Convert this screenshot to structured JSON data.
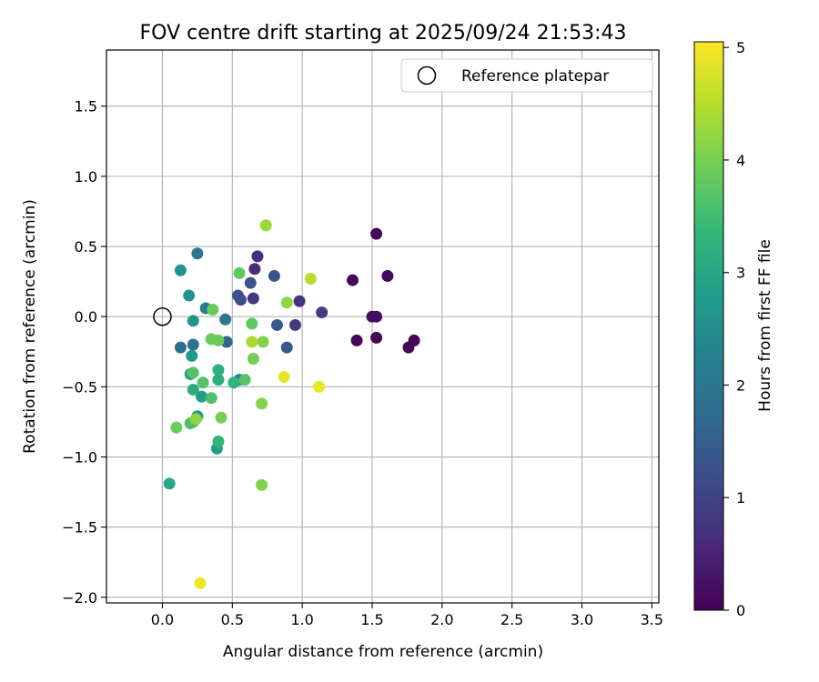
{
  "chart_data": {
    "type": "scatter",
    "title": "FOV centre drift starting at 2025/09/24 21:53:43",
    "xlabel": "Angular distance from reference (arcmin)",
    "ylabel": "Rotation from reference (arcmin)",
    "xlim": [
      -0.4,
      3.55
    ],
    "ylim": [
      -2.04,
      1.9
    ],
    "xticks": [
      0.0,
      0.5,
      1.0,
      1.5,
      2.0,
      2.5,
      3.0,
      3.5
    ],
    "xtick_labels": [
      "0.0",
      "0.5",
      "1.0",
      "1.5",
      "2.0",
      "2.5",
      "3.0",
      "3.5"
    ],
    "yticks": [
      -2.0,
      -1.5,
      -1.0,
      -0.5,
      0.0,
      0.5,
      1.0,
      1.5
    ],
    "ytick_labels": [
      "−2.0",
      "−1.5",
      "−1.0",
      "−0.5",
      "0.0",
      "0.5",
      "1.0",
      "1.5"
    ],
    "grid": true,
    "legend": {
      "position": "top-right",
      "entries": [
        {
          "label": "Reference platepar",
          "marker": "open-circle"
        }
      ]
    },
    "reference_point": {
      "x": 0.0,
      "y": 0.0
    },
    "colorbar": {
      "label": "Hours from first FF file",
      "range": [
        0,
        5.05
      ],
      "ticks": [
        0,
        1,
        2,
        3,
        4,
        5
      ],
      "tick_labels": [
        "0",
        "1",
        "2",
        "3",
        "4",
        "5"
      ],
      "colormap": "viridis"
    },
    "points": [
      {
        "x": 1.36,
        "y": 0.26,
        "h": 0.1
      },
      {
        "x": 1.53,
        "y": 0.59,
        "h": 0.1
      },
      {
        "x": 1.61,
        "y": 0.29,
        "h": 0.1
      },
      {
        "x": 1.39,
        "y": -0.17,
        "h": 0.1
      },
      {
        "x": 1.5,
        "y": 0.0,
        "h": 0.2
      },
      {
        "x": 1.53,
        "y": 0.0,
        "h": 0.2
      },
      {
        "x": 1.53,
        "y": -0.15,
        "h": 0.1
      },
      {
        "x": 1.8,
        "y": -0.17,
        "h": 0.05
      },
      {
        "x": 1.76,
        "y": -0.22,
        "h": 0.05
      },
      {
        "x": 0.68,
        "y": 0.43,
        "h": 0.7
      },
      {
        "x": 0.66,
        "y": 0.34,
        "h": 0.7
      },
      {
        "x": 0.65,
        "y": 0.13,
        "h": 0.8
      },
      {
        "x": 0.98,
        "y": 0.11,
        "h": 0.8
      },
      {
        "x": 1.14,
        "y": 0.03,
        "h": 0.9
      },
      {
        "x": 0.95,
        "y": -0.06,
        "h": 0.9
      },
      {
        "x": 0.8,
        "y": 0.29,
        "h": 1.3
      },
      {
        "x": 0.63,
        "y": 0.24,
        "h": 1.3
      },
      {
        "x": 0.54,
        "y": 0.15,
        "h": 1.3
      },
      {
        "x": 0.56,
        "y": 0.12,
        "h": 1.2
      },
      {
        "x": 0.89,
        "y": -0.22,
        "h": 1.4
      },
      {
        "x": 0.82,
        "y": -0.06,
        "h": 1.4
      },
      {
        "x": 0.46,
        "y": -0.18,
        "h": 1.6
      },
      {
        "x": 0.13,
        "y": -0.22,
        "h": 1.8
      },
      {
        "x": 0.22,
        "y": -0.2,
        "h": 1.9
      },
      {
        "x": 0.25,
        "y": 0.45,
        "h": 2.0
      },
      {
        "x": 0.45,
        "y": -0.02,
        "h": 2.0
      },
      {
        "x": 0.31,
        "y": 0.06,
        "h": 2.1
      },
      {
        "x": 0.55,
        "y": -0.45,
        "h": 2.2
      },
      {
        "x": 0.13,
        "y": 0.33,
        "h": 2.6
      },
      {
        "x": 0.19,
        "y": 0.15,
        "h": 2.6
      },
      {
        "x": 0.22,
        "y": -0.03,
        "h": 2.6
      },
      {
        "x": 0.21,
        "y": -0.28,
        "h": 2.7
      },
      {
        "x": 0.25,
        "y": -0.71,
        "h": 2.7
      },
      {
        "x": 0.28,
        "y": -0.57,
        "h": 2.8
      },
      {
        "x": 0.39,
        "y": -0.94,
        "h": 2.8
      },
      {
        "x": 0.05,
        "y": -1.19,
        "h": 3.0
      },
      {
        "x": 0.2,
        "y": -0.41,
        "h": 3.0
      },
      {
        "x": 0.22,
        "y": -0.52,
        "h": 3.1
      },
      {
        "x": 0.4,
        "y": -0.45,
        "h": 3.2
      },
      {
        "x": 0.4,
        "y": -0.38,
        "h": 3.2
      },
      {
        "x": 0.4,
        "y": -0.89,
        "h": 3.3
      },
      {
        "x": 0.51,
        "y": -0.47,
        "h": 3.3
      },
      {
        "x": 0.22,
        "y": -0.75,
        "h": 3.5
      },
      {
        "x": 0.2,
        "y": -0.76,
        "h": 3.6
      },
      {
        "x": 0.35,
        "y": -0.58,
        "h": 3.6
      },
      {
        "x": 0.29,
        "y": -0.47,
        "h": 3.7
      },
      {
        "x": 0.22,
        "y": -0.4,
        "h": 3.7
      },
      {
        "x": 0.59,
        "y": -0.45,
        "h": 3.7
      },
      {
        "x": 0.55,
        "y": 0.31,
        "h": 3.8
      },
      {
        "x": 0.64,
        "y": -0.05,
        "h": 3.8
      },
      {
        "x": 0.36,
        "y": 0.05,
        "h": 3.9
      },
      {
        "x": 0.35,
        "y": -0.16,
        "h": 3.9
      },
      {
        "x": 0.4,
        "y": -0.17,
        "h": 3.9
      },
      {
        "x": 0.1,
        "y": -0.79,
        "h": 3.9
      },
      {
        "x": 0.42,
        "y": -0.72,
        "h": 4.0
      },
      {
        "x": 0.65,
        "y": -0.3,
        "h": 4.0
      },
      {
        "x": 0.72,
        "y": -0.18,
        "h": 4.1
      },
      {
        "x": 0.71,
        "y": -0.62,
        "h": 4.1
      },
      {
        "x": 0.71,
        "y": -1.2,
        "h": 4.1
      },
      {
        "x": 0.24,
        "y": -0.73,
        "h": 4.2
      },
      {
        "x": 0.89,
        "y": 0.1,
        "h": 4.2
      },
      {
        "x": 0.74,
        "y": 0.65,
        "h": 4.3
      },
      {
        "x": 0.64,
        "y": -0.18,
        "h": 4.4
      },
      {
        "x": 1.06,
        "y": 0.27,
        "h": 4.5
      },
      {
        "x": 0.87,
        "y": -0.43,
        "h": 4.9
      },
      {
        "x": 1.12,
        "y": -0.5,
        "h": 4.9
      },
      {
        "x": 0.27,
        "y": -1.9,
        "h": 4.95
      }
    ]
  }
}
